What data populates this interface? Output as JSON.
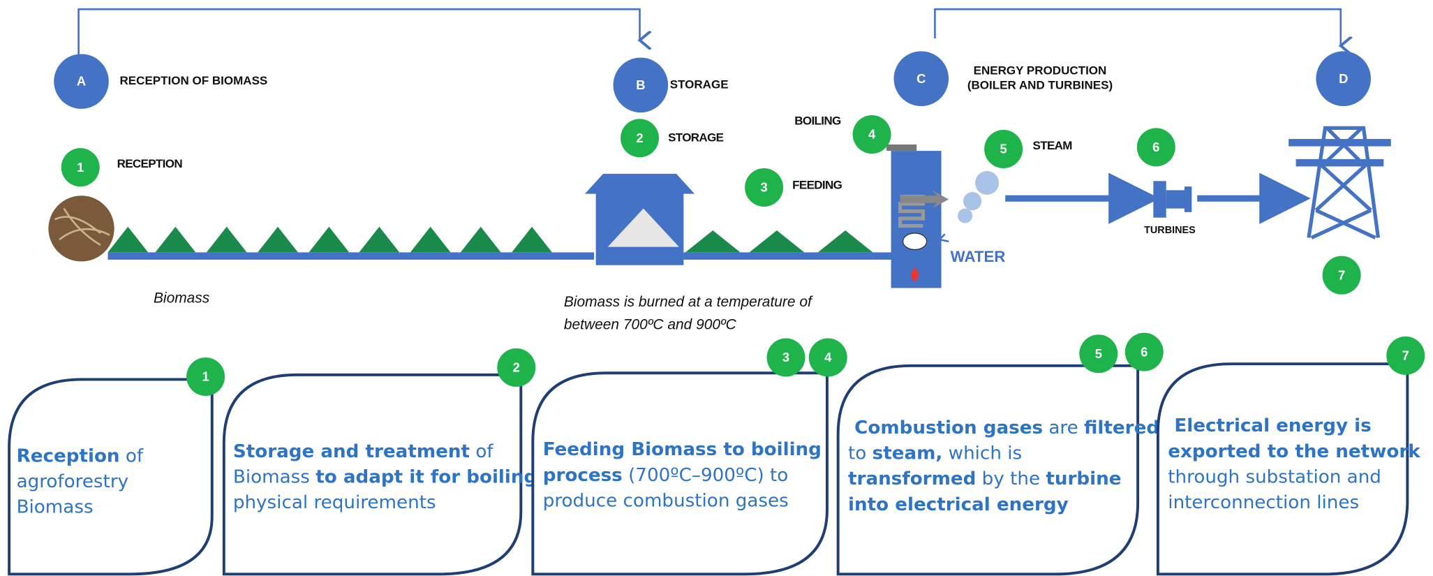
{
  "stages": [
    {
      "letter": "A",
      "lines": [
        "RECEPTION OF BIOMASS"
      ]
    },
    {
      "letter": "B",
      "lines": [
        "STORAGE"
      ]
    },
    {
      "letter": "C",
      "lines": [
        "ENERGY PRODUCTION",
        "(BOILER AND TURBINES)"
      ]
    },
    {
      "letter": "D",
      "lines": []
    }
  ],
  "steps": [
    {
      "number": "1",
      "label": "RECEPTION"
    },
    {
      "number": "2",
      "label": "STORAGE"
    },
    {
      "number": "3",
      "label": "FEEDING"
    },
    {
      "number": "4",
      "label": "BOILING"
    },
    {
      "number": "5",
      "label": "STEAM"
    },
    {
      "number": "6"
    },
    {
      "number": "7"
    }
  ],
  "labels": {
    "turbines": "TURBINES",
    "water": "WATER",
    "biomass": "Biomass",
    "caption": [
      "Biomass is burned at a temperature of",
      "between 700ºC and 900ºC"
    ]
  },
  "boxes": [
    {
      "badges": [
        "1"
      ],
      "lines": [
        [
          {
            "text": "Reception",
            "bold": true
          },
          {
            "text": " of"
          }
        ],
        [
          {
            "text": "agroforestry"
          }
        ],
        [
          {
            "text": "Biomass"
          }
        ]
      ]
    },
    {
      "badges": [
        "2"
      ],
      "lines": [
        [
          {
            "text": "Storage and treatment",
            "bold": true
          },
          {
            "text": " of"
          }
        ],
        [
          {
            "text": "Biomass "
          },
          {
            "text": "to adapt it for boiling",
            "bold": true
          }
        ],
        [
          {
            "text": "physical requirements"
          }
        ]
      ]
    },
    {
      "badges": [
        "3",
        "4"
      ],
      "lines": [
        [
          {
            "text": "Feeding Biomass to boiling",
            "bold": true
          }
        ],
        [
          {
            "text": "process",
            "bold": true
          },
          {
            "text": " (700ºC–900ºC) to"
          }
        ],
        [
          {
            "text": "produce combustion gases"
          }
        ]
      ]
    },
    {
      "badges": [
        "5",
        "6"
      ],
      "lines": [
        [
          {
            "text": " Combustion gases",
            "bold": true
          },
          {
            "text": " are "
          },
          {
            "text": "filtered",
            "bold": true
          }
        ],
        [
          {
            "text": "to "
          },
          {
            "text": "steam,",
            "bold": true
          },
          {
            "text": " which is"
          }
        ],
        [
          {
            "text": "transformed",
            "bold": true
          },
          {
            "text": " by the "
          },
          {
            "text": "turbine",
            "bold": true
          }
        ],
        [
          {
            "text": "into electrical energy",
            "bold": true
          }
        ]
      ]
    },
    {
      "badges": [
        "7"
      ],
      "lines": [
        [
          {
            "text": " Electrical energy is",
            "bold": true
          }
        ],
        [
          {
            "text": "exported to the network",
            "bold": true
          }
        ],
        [
          {
            "text": "through substation and"
          }
        ],
        [
          {
            "text": "interconnection lines"
          }
        ]
      ]
    }
  ]
}
